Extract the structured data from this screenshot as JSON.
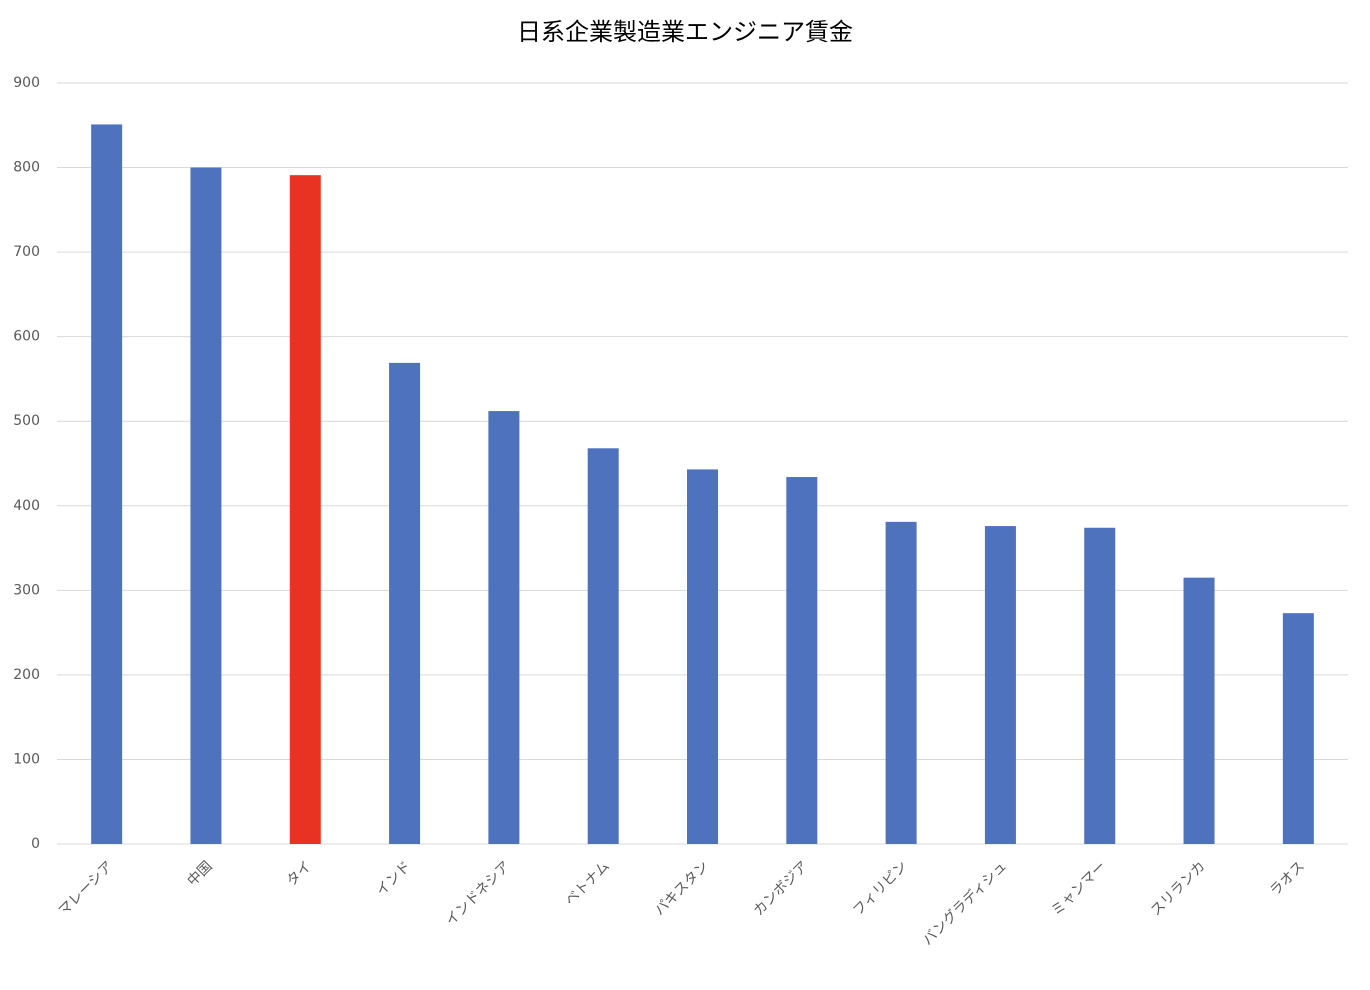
{
  "chart_data": {
    "type": "bar",
    "title": "日系企業製造業エンジニア賃金",
    "categories": [
      "マレーシア",
      "中国",
      "タイ",
      "インド",
      "インドネシア",
      "ベトナム",
      "パキスタン",
      "カンボジア",
      "フィリピン",
      "バングラディシュ",
      "ミャンマー",
      "スリランカ",
      "ラオス"
    ],
    "values": [
      851,
      800,
      791,
      569,
      512,
      468,
      443,
      434,
      381,
      376,
      374,
      315,
      273
    ],
    "colors": [
      "#4e72bd",
      "#4e72bd",
      "#e83323",
      "#4e72bd",
      "#4e72bd",
      "#4e72bd",
      "#4e72bd",
      "#4e72bd",
      "#4e72bd",
      "#4e72bd",
      "#4e72bd",
      "#4e72bd",
      "#4e72bd"
    ],
    "ylim": [
      0,
      900
    ],
    "yticks": [
      0,
      100,
      200,
      300,
      400,
      500,
      600,
      700,
      800,
      900
    ],
    "grid": true
  }
}
